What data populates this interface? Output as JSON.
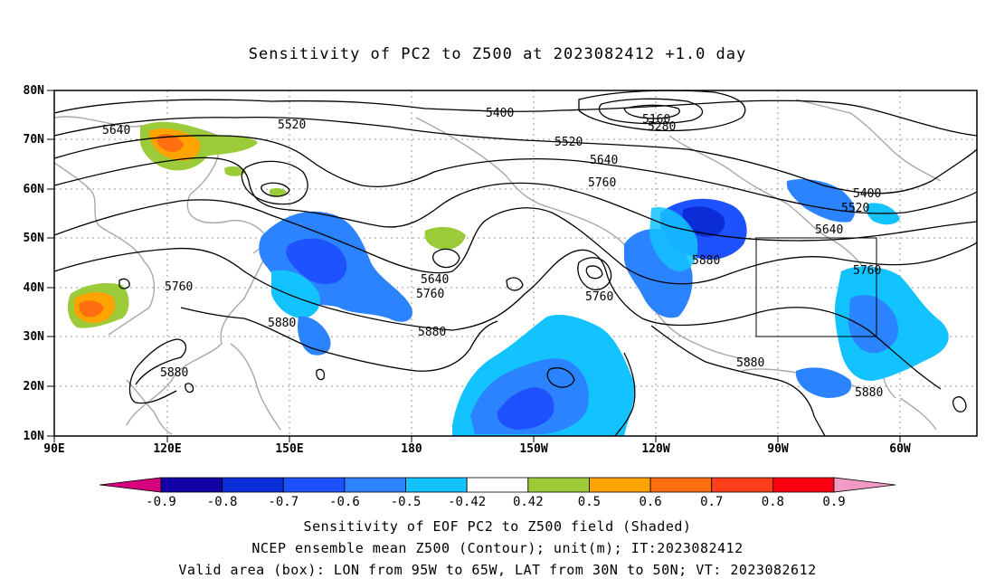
{
  "title": "Sensitivity of PC2 to Z500 at 2023082412 +1.0 day",
  "lat_labels": [
    "80N",
    "70N",
    "60N",
    "50N",
    "40N",
    "30N",
    "20N",
    "10N"
  ],
  "lon_labels": [
    "90E",
    "120E",
    "150E",
    "180",
    "150W",
    "120W",
    "90W",
    "60W"
  ],
  "colorbar": {
    "labels": [
      "-0.9",
      "-0.8",
      "-0.7",
      "-0.6",
      "-0.5",
      "-0.42",
      "0.42",
      "0.5",
      "0.6",
      "0.7",
      "0.8",
      "0.9"
    ],
    "colors": [
      "#d4007e",
      "#1200a6",
      "#0a2dd8",
      "#1e52ff",
      "#2c83ff",
      "#13c3ff",
      "#ffffff",
      "#9ccb3a",
      "#ffa300",
      "#ff6f11",
      "#ff3e1a",
      "#ff0010",
      "#f29ac3"
    ]
  },
  "contour_labels": [
    "5640",
    "5520",
    "5400",
    "5160",
    "5280",
    "5520",
    "5640",
    "5760",
    "5400",
    "5520",
    "5640",
    "5760",
    "5880",
    "5640",
    "5760",
    "5760",
    "5760",
    "5880",
    "5880",
    "5880",
    "5880",
    "5880"
  ],
  "footer": {
    "line1": "Sensitivity of EOF PC2 to Z500 field (Shaded)",
    "line2": "NCEP ensemble mean Z500 (Contour); unit(m); IT:2023082412",
    "line3": "Valid area (box): LON from 95W to 65W, LAT from 30N to 50N; VT: 2023082612"
  }
}
